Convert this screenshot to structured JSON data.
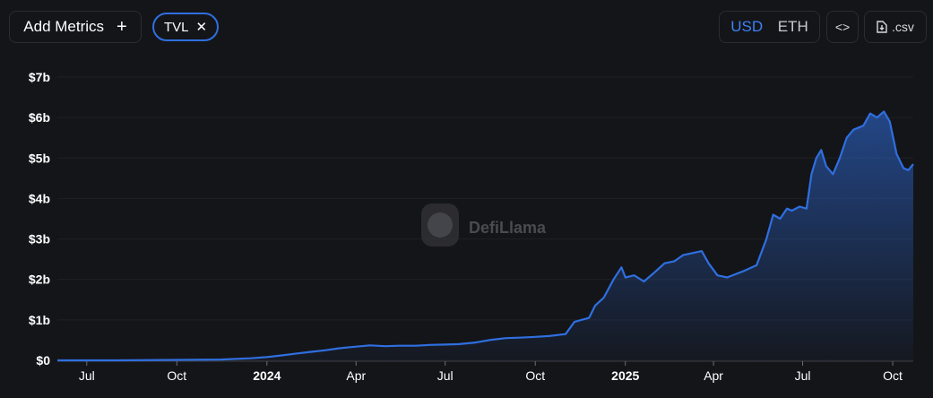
{
  "toolbar": {
    "add_metrics_label": "Add Metrics",
    "add_metrics_icon": "+",
    "chip_label": "TVL",
    "chip_close": "✕",
    "currency_options": [
      "USD",
      "ETH"
    ],
    "currency_selected": "USD",
    "embed_label": "<>",
    "csv_label": ".csv"
  },
  "watermark": {
    "text": "DefiLlama"
  },
  "colors": {
    "background": "#141519",
    "line": "#2f6fe0",
    "accent": "#3b82f6",
    "axis_text": "#ffffff",
    "grid": "#1f2126"
  },
  "chart_data": {
    "type": "area",
    "title": "",
    "xlabel": "",
    "ylabel": "",
    "ylim": [
      0,
      7
    ],
    "y_unit": "billions USD",
    "y_ticks": [
      "$0",
      "$1b",
      "$2b",
      "$3b",
      "$4b",
      "$5b",
      "$6b",
      "$7b"
    ],
    "x_ticks": [
      {
        "label": "Jul",
        "date": "2023-07-01",
        "bold": false
      },
      {
        "label": "Oct",
        "date": "2023-10-01",
        "bold": false
      },
      {
        "label": "2024",
        "date": "2024-01-01",
        "bold": true
      },
      {
        "label": "Apr",
        "date": "2024-04-01",
        "bold": false
      },
      {
        "label": "Jul",
        "date": "2024-07-01",
        "bold": false
      },
      {
        "label": "Oct",
        "date": "2024-10-01",
        "bold": false
      },
      {
        "label": "2025",
        "date": "2025-01-01",
        "bold": true
      },
      {
        "label": "Apr",
        "date": "2025-04-01",
        "bold": false
      },
      {
        "label": "Jul",
        "date": "2025-07-01",
        "bold": false
      },
      {
        "label": "Oct",
        "date": "2025-10-01",
        "bold": false
      }
    ],
    "grid": true,
    "series": [
      {
        "values": [
          [
            "2023-06-01",
            0.0
          ],
          [
            "2023-08-01",
            0.0
          ],
          [
            "2023-10-01",
            0.01
          ],
          [
            "2023-11-15",
            0.02
          ],
          [
            "2023-12-15",
            0.05
          ],
          [
            "2024-01-01",
            0.08
          ],
          [
            "2024-01-15",
            0.12
          ],
          [
            "2024-02-01",
            0.17
          ],
          [
            "2024-02-15",
            0.21
          ],
          [
            "2024-03-01",
            0.25
          ],
          [
            "2024-03-15",
            0.3
          ],
          [
            "2024-04-01",
            0.34
          ],
          [
            "2024-04-15",
            0.37
          ],
          [
            "2024-05-01",
            0.35
          ],
          [
            "2024-05-15",
            0.36
          ],
          [
            "2024-06-01",
            0.36
          ],
          [
            "2024-06-15",
            0.38
          ],
          [
            "2024-07-01",
            0.39
          ],
          [
            "2024-07-15",
            0.4
          ],
          [
            "2024-08-01",
            0.44
          ],
          [
            "2024-08-15",
            0.5
          ],
          [
            "2024-09-01",
            0.55
          ],
          [
            "2024-09-15",
            0.56
          ],
          [
            "2024-10-01",
            0.58
          ],
          [
            "2024-10-15",
            0.6
          ],
          [
            "2024-11-01",
            0.65
          ],
          [
            "2024-11-10",
            0.95
          ],
          [
            "2024-11-25",
            1.05
          ],
          [
            "2024-12-01",
            1.35
          ],
          [
            "2024-12-10",
            1.55
          ],
          [
            "2024-12-20",
            2.0
          ],
          [
            "2024-12-28",
            2.3
          ],
          [
            "2025-01-01",
            2.05
          ],
          [
            "2025-01-10",
            2.1
          ],
          [
            "2025-01-20",
            1.95
          ],
          [
            "2025-02-01",
            2.2
          ],
          [
            "2025-02-10",
            2.4
          ],
          [
            "2025-02-20",
            2.45
          ],
          [
            "2025-03-01",
            2.6
          ],
          [
            "2025-03-10",
            2.65
          ],
          [
            "2025-03-20",
            2.7
          ],
          [
            "2025-03-27",
            2.4
          ],
          [
            "2025-04-05",
            2.1
          ],
          [
            "2025-04-15",
            2.05
          ],
          [
            "2025-05-01",
            2.2
          ],
          [
            "2025-05-15",
            2.35
          ],
          [
            "2025-05-25",
            3.0
          ],
          [
            "2025-06-01",
            3.6
          ],
          [
            "2025-06-08",
            3.5
          ],
          [
            "2025-06-15",
            3.75
          ],
          [
            "2025-06-20",
            3.7
          ],
          [
            "2025-06-28",
            3.8
          ],
          [
            "2025-07-05",
            3.75
          ],
          [
            "2025-07-10",
            4.6
          ],
          [
            "2025-07-15",
            5.0
          ],
          [
            "2025-07-20",
            5.2
          ],
          [
            "2025-07-25",
            4.8
          ],
          [
            "2025-08-01",
            4.6
          ],
          [
            "2025-08-08",
            5.0
          ],
          [
            "2025-08-15",
            5.5
          ],
          [
            "2025-08-22",
            5.7
          ],
          [
            "2025-09-01",
            5.8
          ],
          [
            "2025-09-08",
            6.1
          ],
          [
            "2025-09-15",
            6.0
          ],
          [
            "2025-09-22",
            6.15
          ],
          [
            "2025-09-28",
            5.9
          ],
          [
            "2025-10-05",
            5.1
          ],
          [
            "2025-10-12",
            4.75
          ],
          [
            "2025-10-17",
            4.7
          ],
          [
            "2025-10-22",
            4.85
          ]
        ]
      }
    ],
    "x_range": [
      "2023-06-01",
      "2025-10-22"
    ]
  }
}
